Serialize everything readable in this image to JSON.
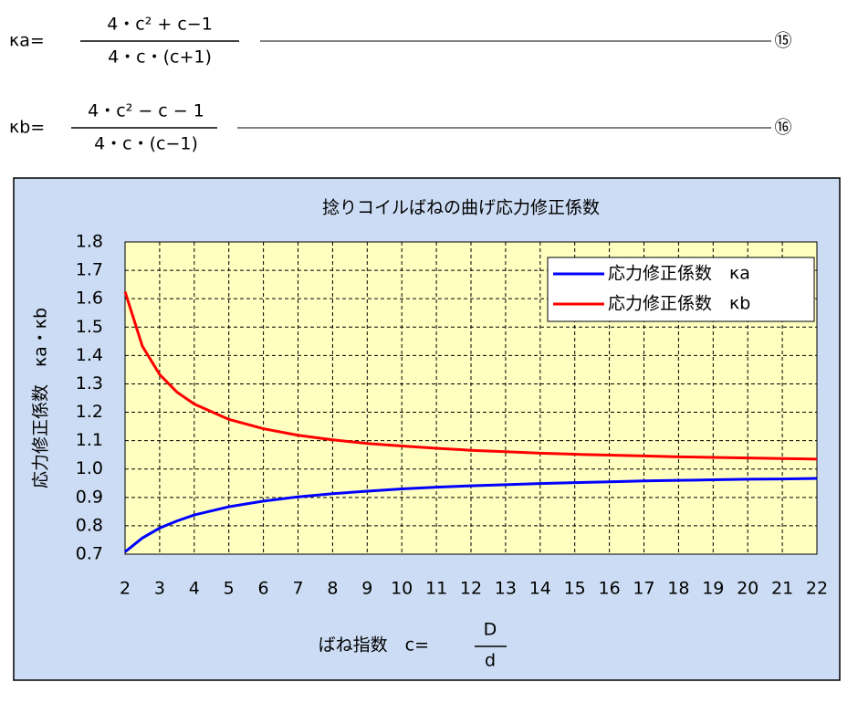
{
  "formulas": [
    {
      "lhs": "κa=",
      "numerator": "4・c² + c−1",
      "denominator": "4・c・(c+1)",
      "number": "⑮"
    },
    {
      "lhs": "κb=",
      "numerator": "4・c² − c − 1",
      "denominator": "4・c・(c−1)",
      "number": "⑯"
    }
  ],
  "chart_data": {
    "type": "line",
    "title": "捻りコイルばねの曲げ応力修正係数",
    "ylabel": "応力修正係数　κa・κb",
    "xlabel": "ばね指数　c=",
    "xlabel_fraction": {
      "numerator": "D",
      "denominator": "d"
    },
    "x": [
      2,
      2.5,
      3,
      3.5,
      4,
      5,
      6,
      7,
      8,
      9,
      10,
      11,
      12,
      13,
      14,
      15,
      16,
      17,
      18,
      19,
      20,
      21,
      22
    ],
    "series": [
      {
        "name": "応力修正係数　κa",
        "color": "#0000ff",
        "values": [
          0.708,
          0.757,
          0.792,
          0.817,
          0.838,
          0.867,
          0.887,
          0.902,
          0.913,
          0.922,
          0.93,
          0.936,
          0.941,
          0.945,
          0.949,
          0.952,
          0.955,
          0.958,
          0.96,
          0.962,
          0.964,
          0.965,
          0.967
        ]
      },
      {
        "name": "応力修正係数　κb",
        "color": "#ff0000",
        "values": [
          1.625,
          1.433,
          1.333,
          1.271,
          1.229,
          1.175,
          1.142,
          1.119,
          1.103,
          1.09,
          1.081,
          1.073,
          1.066,
          1.061,
          1.056,
          1.052,
          1.049,
          1.046,
          1.043,
          1.041,
          1.039,
          1.037,
          1.035
        ]
      }
    ],
    "xlim": [
      2,
      22
    ],
    "xticks": [
      2,
      3,
      4,
      5,
      6,
      7,
      8,
      9,
      10,
      11,
      12,
      13,
      14,
      15,
      16,
      17,
      18,
      19,
      20,
      21,
      22
    ],
    "ylim": [
      0.7,
      1.8
    ],
    "yticks": [
      0.7,
      0.8,
      0.9,
      {
        "value": 1,
        "label": "1.0"
      },
      1.1,
      1.2,
      1.3,
      1.4,
      1.5,
      1.6,
      1.7,
      1.8
    ],
    "grid": true,
    "legend": "upper right"
  }
}
